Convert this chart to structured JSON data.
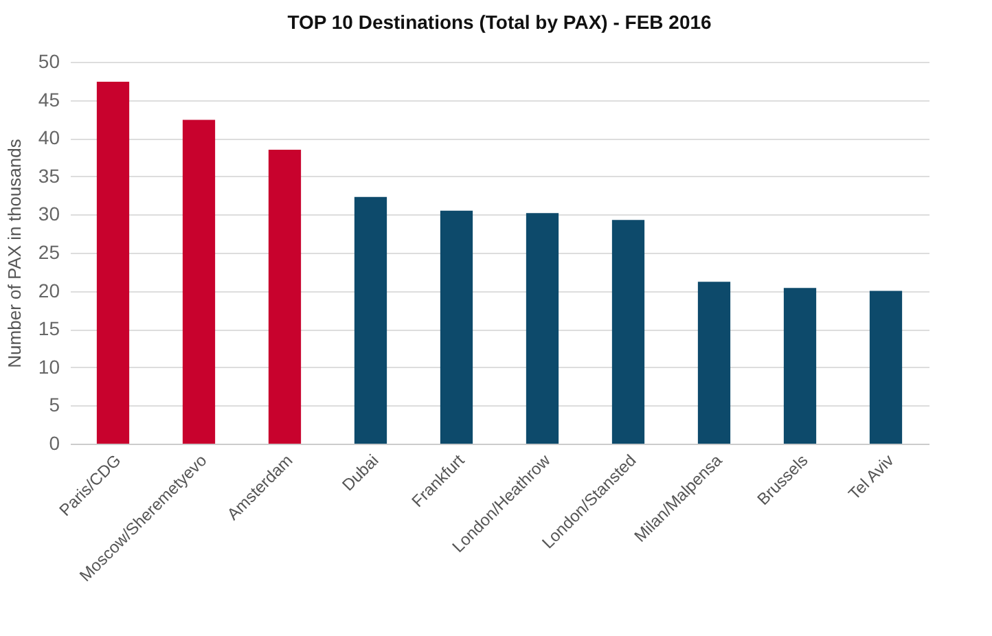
{
  "chart_data": {
    "type": "bar",
    "title": "TOP 10 Destinations (Total by PAX) - FEB 2016",
    "ylabel": "Number of PAX in thousands",
    "categories": [
      "Paris/CDG",
      "Moscow/Sheremetyevo",
      "Amsterdam",
      "Dubai",
      "Frankfurt",
      "London/Heathrow",
      "London/Stansted",
      "Milan/Malpensa",
      "Brussels",
      "Tel Aviv"
    ],
    "values": [
      47.4,
      42.4,
      38.5,
      32.3,
      30.5,
      30.2,
      29.3,
      21.2,
      20.4,
      20.0
    ],
    "colors": [
      "#c8022d",
      "#c8022d",
      "#c8022d",
      "#0d4a6b",
      "#0d4a6b",
      "#0d4a6b",
      "#0d4a6b",
      "#0d4a6b",
      "#0d4a6b",
      "#0d4a6b"
    ],
    "ylim": [
      0,
      50
    ],
    "yticks": [
      0,
      5,
      10,
      15,
      20,
      25,
      30,
      35,
      40,
      45,
      50
    ],
    "grid": "y"
  }
}
